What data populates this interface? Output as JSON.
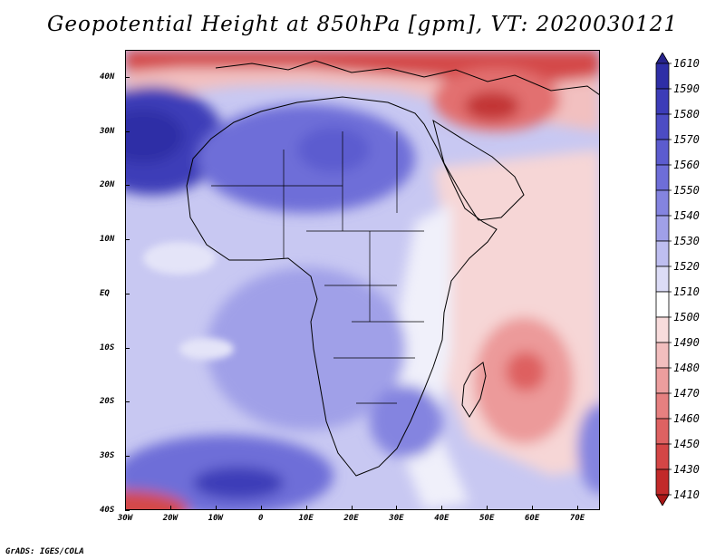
{
  "title": "Geopotential Height at 850hPa [gpm], VT: 2020030121",
  "footer": "GrADS: IGES/COLA",
  "axes": {
    "lat_labels": [
      "40N",
      "30N",
      "20N",
      "10N",
      "EQ",
      "10S",
      "20S",
      "30S",
      "40S"
    ],
    "lat_values": [
      40,
      30,
      20,
      10,
      0,
      -10,
      -20,
      -30,
      -40
    ],
    "lon_labels": [
      "30W",
      "20W",
      "10W",
      "0",
      "10E",
      "20E",
      "30E",
      "40E",
      "50E",
      "60E",
      "70E"
    ],
    "lon_values": [
      -30,
      -20,
      -10,
      0,
      10,
      20,
      30,
      40,
      50,
      60,
      70
    ],
    "lon_range": [
      -30,
      75
    ],
    "lat_range": [
      -40,
      45
    ]
  },
  "colorbar": {
    "labels": [
      "1610",
      "1590",
      "1580",
      "1570",
      "1560",
      "1550",
      "1540",
      "1530",
      "1520",
      "1510",
      "1500",
      "1490",
      "1480",
      "1470",
      "1460",
      "1450",
      "1430",
      "1410"
    ],
    "colors": [
      "#27238c",
      "#2e2ea6",
      "#3c3cb8",
      "#4c4cc4",
      "#5c5ccf",
      "#6e6ed8",
      "#8484e0",
      "#a0a0e8",
      "#bebef0",
      "#dcdcf6",
      "#ffffff",
      "#f8dcdc",
      "#f2bebe",
      "#ec9e9e",
      "#e68080",
      "#de6262",
      "#d44646",
      "#c22a2a",
      "#a91616"
    ]
  },
  "colors": {
    "low": "#a91616",
    "high": "#27238c",
    "neutral": "#ffffff"
  }
}
